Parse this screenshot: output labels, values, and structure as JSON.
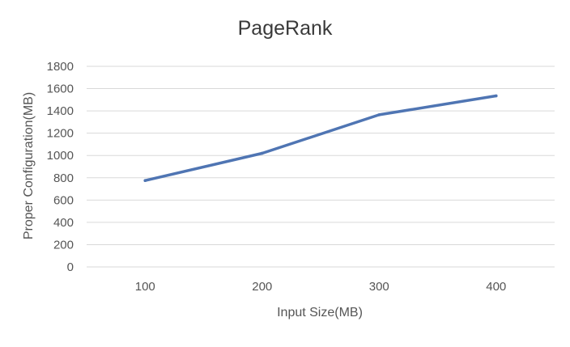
{
  "chart_data": {
    "type": "line",
    "title": "PageRank",
    "xlabel": "Input Size(MB)",
    "ylabel": "Proper Configuration(MB)",
    "categories": [
      "100",
      "200",
      "300",
      "400"
    ],
    "series": [
      {
        "values": [
          775,
          1020,
          1365,
          1535
        ]
      }
    ],
    "ylim": [
      0,
      1800
    ],
    "yticks": [
      "0",
      "200",
      "400",
      "600",
      "800",
      "1000",
      "1200",
      "1400",
      "1600",
      "1800"
    ],
    "grid": true,
    "colors": {
      "line": "#4F75B3",
      "grid": "#d9d9d9"
    }
  }
}
